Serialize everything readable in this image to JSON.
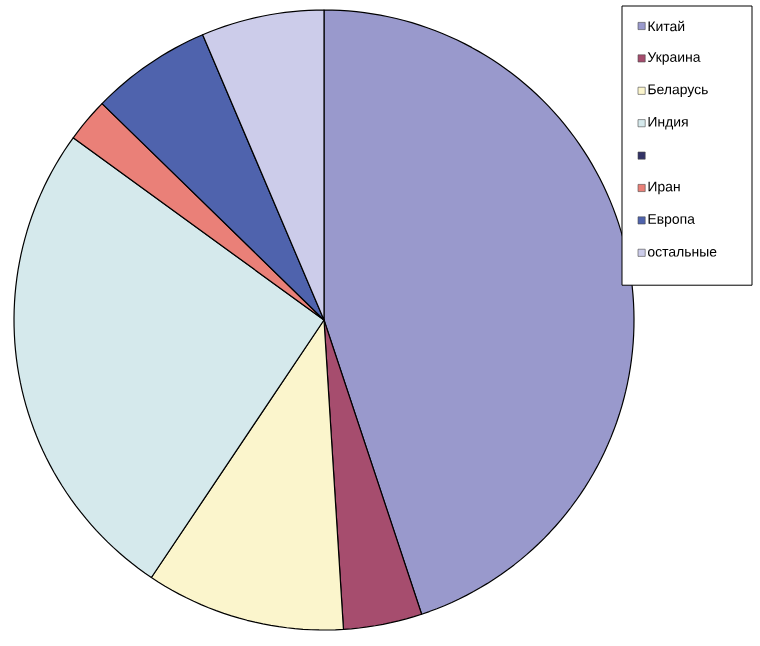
{
  "chart_data": {
    "type": "pie",
    "categories": [
      "Китай",
      "Украина",
      "Беларусь",
      "Индия",
      null,
      "Иран",
      "Европа",
      "остальные"
    ],
    "values": [
      44.9,
      4.1,
      10.4,
      25.6,
      0,
      2.3,
      6.3,
      6.4
    ],
    "colors": [
      "#9999cc",
      "#a64d6e",
      "#fbf5cc",
      "#d5e9ec",
      "#333366",
      "#ea8078",
      "#4f63ad",
      "#ccccea"
    ],
    "legend": "top right"
  }
}
